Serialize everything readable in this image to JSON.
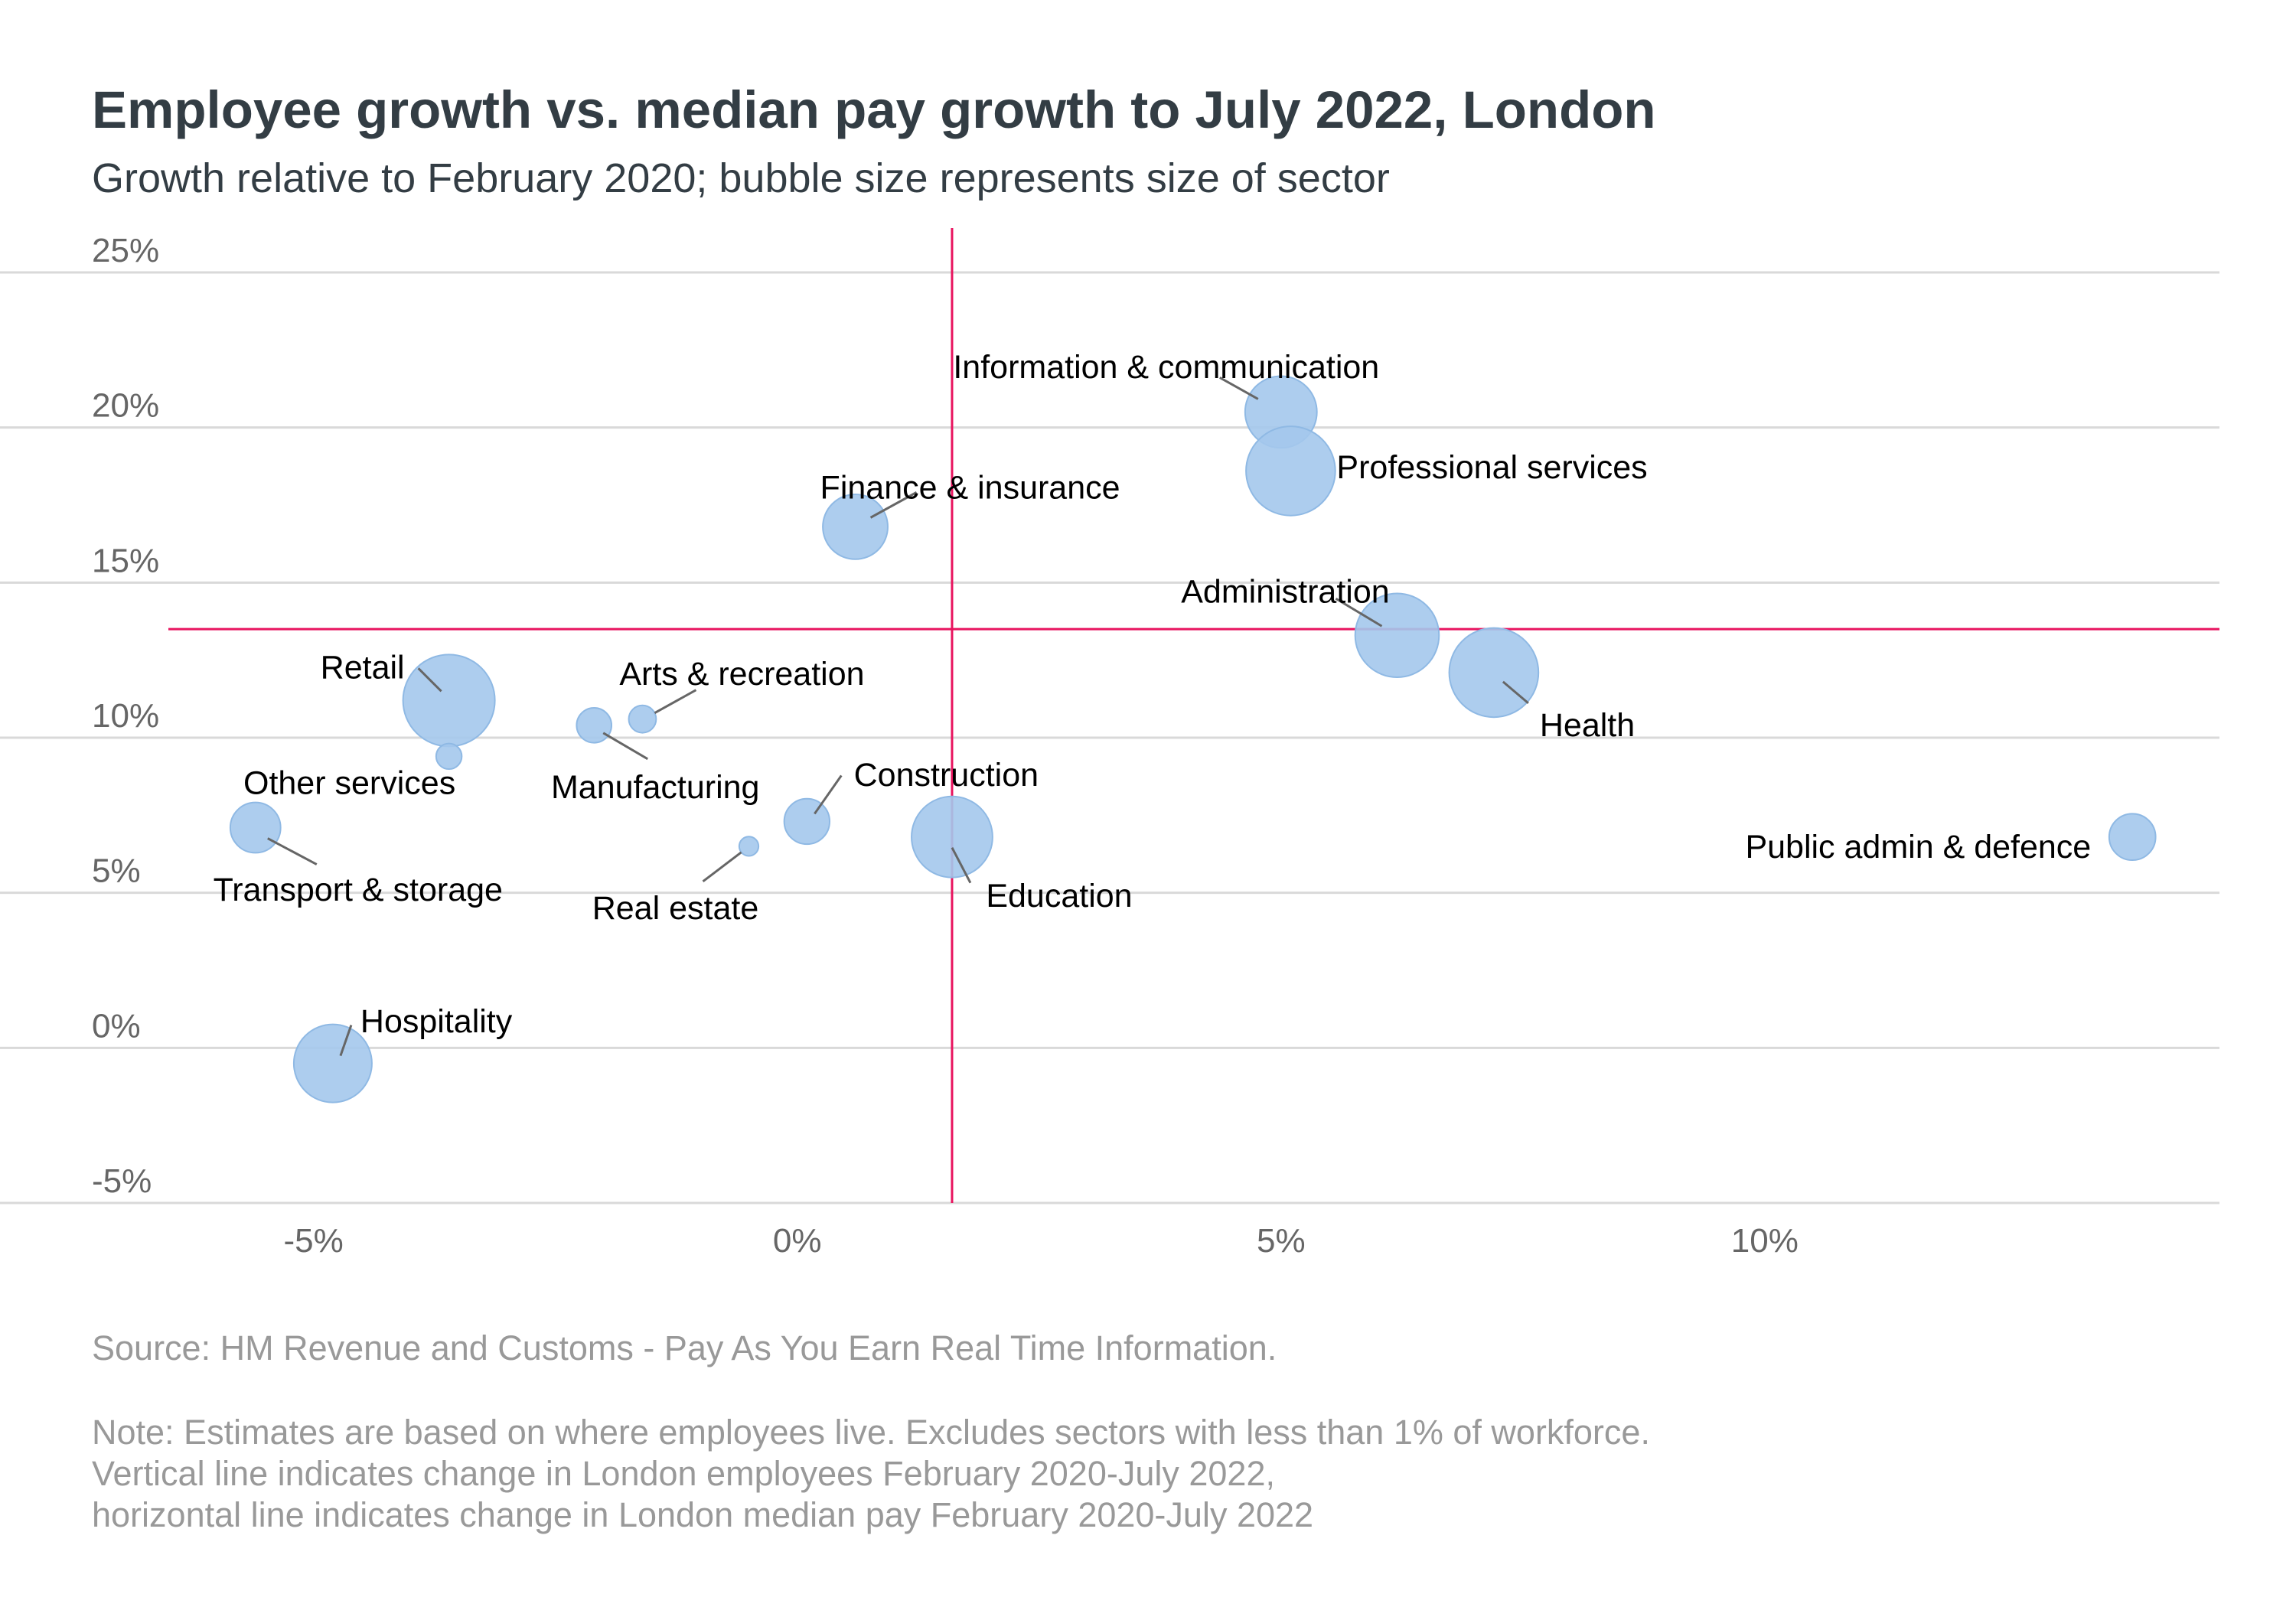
{
  "title": "Employee growth vs. median pay growth to July 2022, London",
  "subtitle": "Growth relative to February 2020; bubble size represents size of sector",
  "source": "Source: HM Revenue and Customs - Pay As You Earn Real Time Information.",
  "note_lines": [
    "Note: Estimates are based on where employees live. Excludes sectors with less than 1% of workforce.",
    "Vertical line indicates change in London employees February 2020-July 2022,",
    "horizontal line indicates change in London median pay February 2020-July 2022"
  ],
  "colors": {
    "bubble": "#a4c8ec",
    "bubble_stroke": "#8fb9e4",
    "reference_line": "#e8145f",
    "grid": "#d9d9d9",
    "leader": "#666666"
  },
  "chart_data": {
    "type": "scatter",
    "title": "Employee growth vs. median pay growth to July 2022, London",
    "subtitle": "Growth relative to February 2020; bubble size represents size of sector",
    "xlabel": "",
    "ylabel": "",
    "xlim": [
      -6.5,
      14.7
    ],
    "ylim": [
      -5,
      25
    ],
    "x_ticks": [
      -5,
      0,
      5,
      10
    ],
    "x_tick_labels": [
      "-5%",
      "0%",
      "5%",
      "10%"
    ],
    "y_ticks": [
      -5,
      0,
      5,
      10,
      15,
      20,
      25
    ],
    "y_tick_labels": [
      "-5%",
      "0%",
      "5%",
      "10%",
      "15%",
      "20%",
      "25%"
    ],
    "grid": "horizontal",
    "reference_lines": {
      "employees_change_x": 1.6,
      "median_pay_change_y": 13.5
    },
    "points": [
      {
        "label": "Information & communication",
        "x": 5.0,
        "y": 20.5,
        "size": 5.5
      },
      {
        "label": "Professional services",
        "x": 5.1,
        "y": 18.6,
        "size": 8.5
      },
      {
        "label": "Finance & insurance",
        "x": 0.6,
        "y": 16.8,
        "size": 4.5
      },
      {
        "label": "Administration",
        "x": 6.2,
        "y": 13.3,
        "size": 7.5
      },
      {
        "label": "Health",
        "x": 7.2,
        "y": 12.1,
        "size": 8.5
      },
      {
        "label": "Retail",
        "x": -3.6,
        "y": 11.2,
        "size": 9.0
      },
      {
        "label": "Arts & recreation",
        "x": -1.6,
        "y": 10.6,
        "size": 0.8
      },
      {
        "label": "Manufacturing",
        "x": -2.1,
        "y": 10.4,
        "size": 1.3
      },
      {
        "label": "Other services",
        "x": -3.6,
        "y": 9.4,
        "size": 0.7
      },
      {
        "label": "Construction",
        "x": 0.1,
        "y": 7.3,
        "size": 2.2
      },
      {
        "label": "Transport & storage",
        "x": -5.6,
        "y": 7.1,
        "size": 2.7
      },
      {
        "label": "Education",
        "x": 1.6,
        "y": 6.8,
        "size": 7.0
      },
      {
        "label": "Public admin & defence",
        "x": 13.8,
        "y": 6.8,
        "size": 2.3
      },
      {
        "label": "Real estate",
        "x": -0.5,
        "y": 6.5,
        "size": 0.4
      },
      {
        "label": "Hospitality",
        "x": -4.8,
        "y": -0.5,
        "size": 6.5
      }
    ]
  }
}
